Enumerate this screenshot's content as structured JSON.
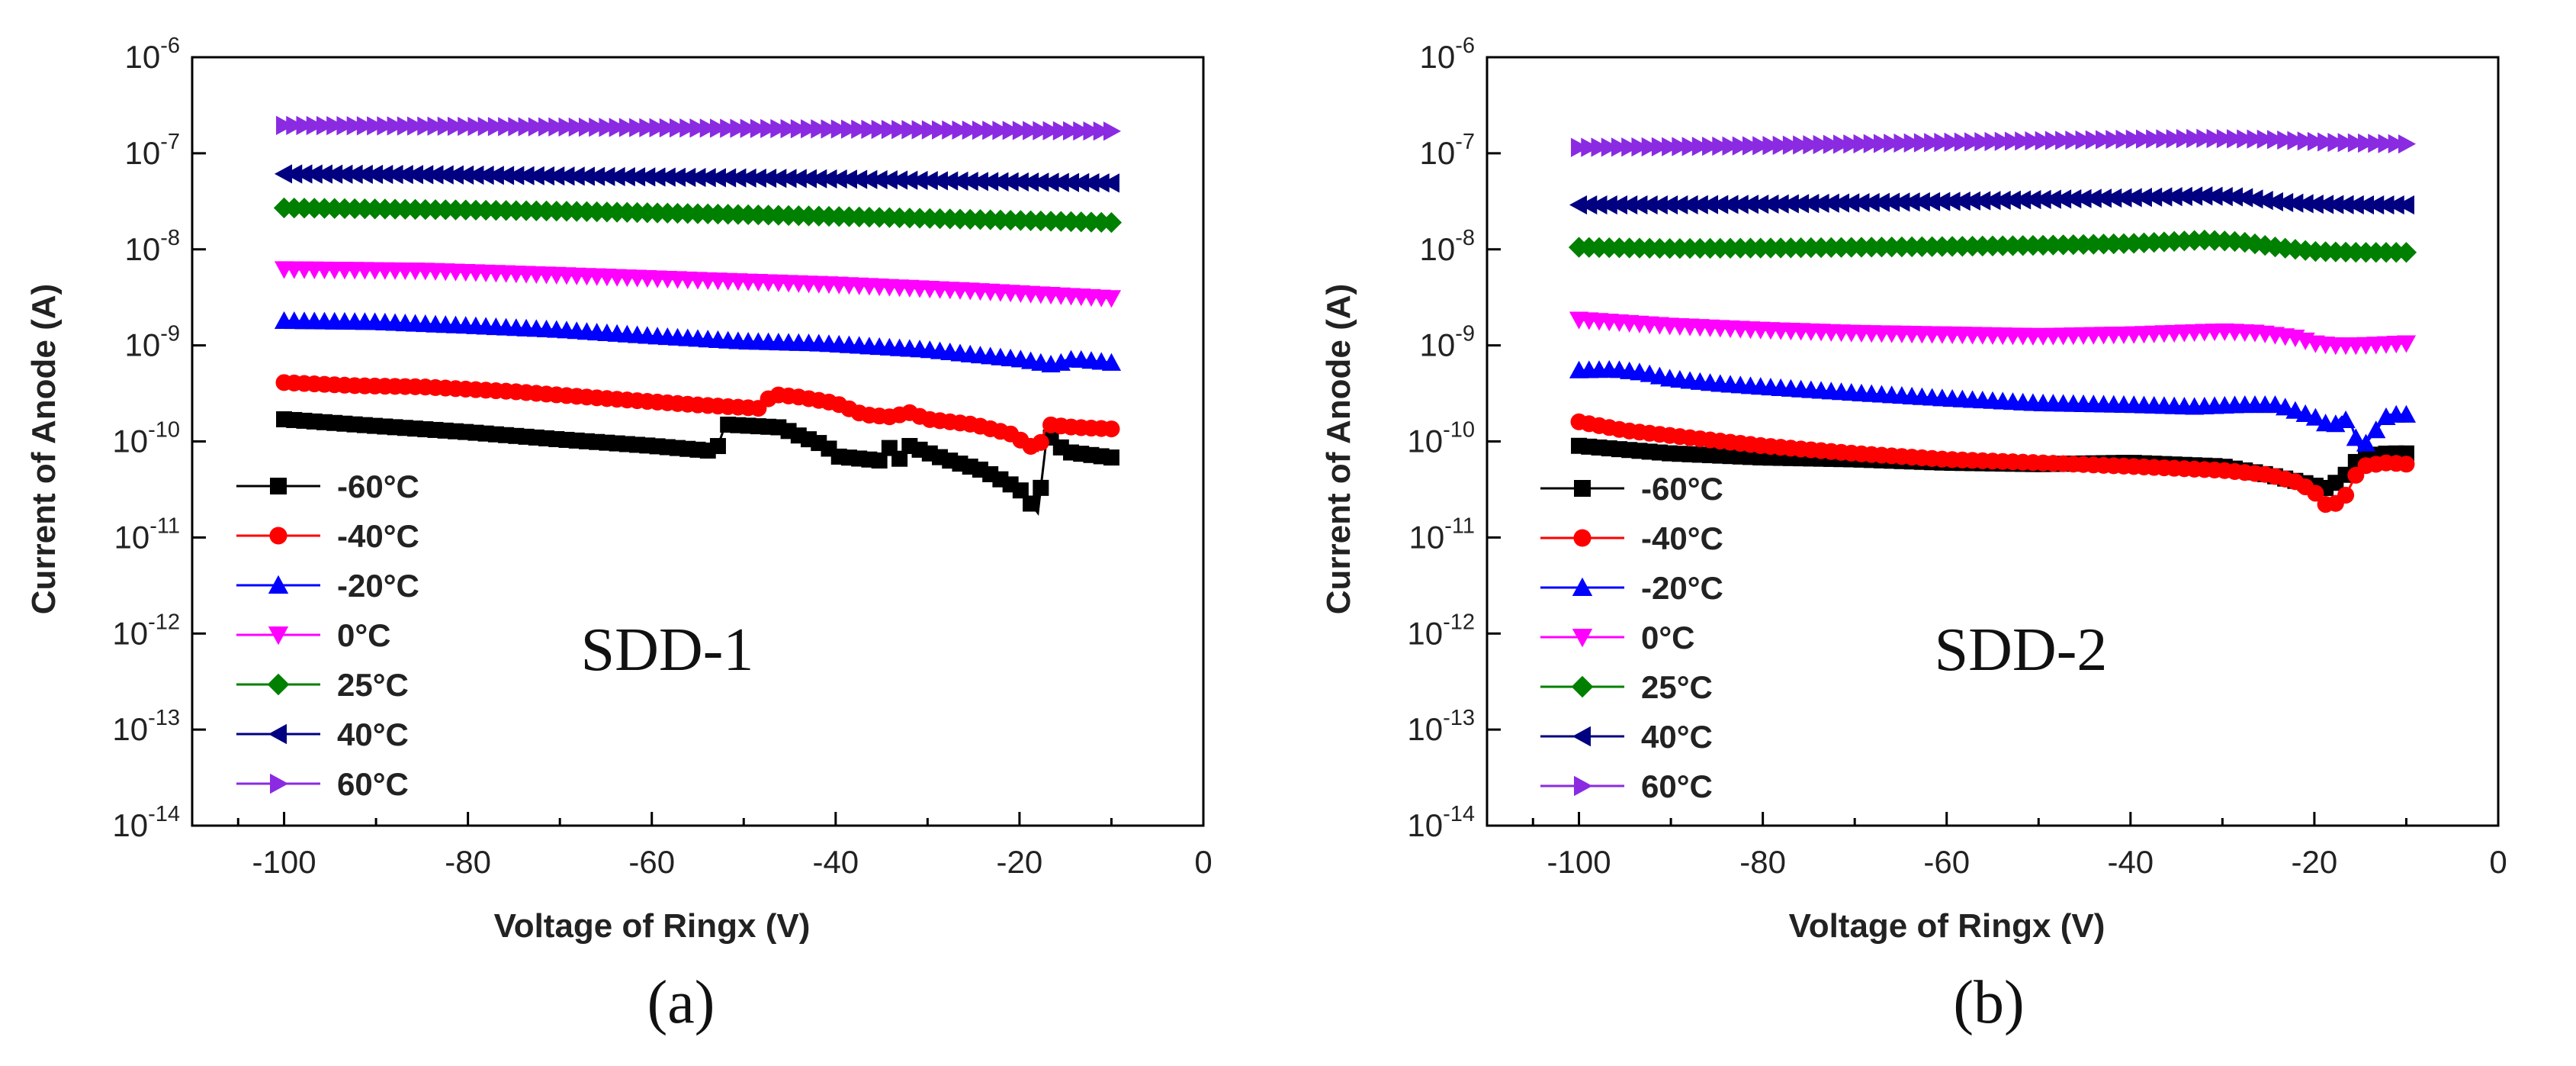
{
  "chart_data": [
    {
      "type": "line",
      "panel": "(a)",
      "annotation": "SDD-1",
      "xlabel": "Voltage of Ringx (V)",
      "ylabel": "Current of Anode (A)",
      "xlim": [
        -110,
        0
      ],
      "xticks": [
        -100,
        -80,
        -60,
        -40,
        -20,
        0
      ],
      "xtick_labels": [
        "-100",
        "-80",
        "-60",
        "-40",
        "-20",
        "0"
      ],
      "yscale": "log",
      "ylim": [
        1e-14,
        1e-06
      ],
      "yticks": [
        {
          "base": "10",
          "exp": "-14"
        },
        {
          "base": "10",
          "exp": "-13"
        },
        {
          "base": "10",
          "exp": "-12"
        },
        {
          "base": "10",
          "exp": "-11"
        },
        {
          "base": "10",
          "exp": "-10"
        },
        {
          "base": "10",
          "exp": "-9"
        },
        {
          "base": "10",
          "exp": "-8"
        },
        {
          "base": "10",
          "exp": "-7"
        },
        {
          "base": "10",
          "exp": "-6"
        }
      ],
      "legend_position": "lower-left",
      "series": [
        {
          "name": "-60°C",
          "color": "#000000",
          "marker": "square",
          "x": [
            -100,
            -90,
            -80,
            -70,
            -60,
            -53,
            -52,
            -46,
            -44,
            -41,
            -40,
            -35,
            -34,
            -33,
            -32,
            -28,
            -24,
            -20,
            -18,
            -17,
            -15,
            -10
          ],
          "y": [
            1.7e-10,
            1.45e-10,
            1.25e-10,
            1.05e-10,
            9e-11,
            7.9e-11,
            1.5e-10,
            1.4e-10,
            1.15e-10,
            9e-11,
            7e-11,
            6.3e-11,
            9e-11,
            6.5e-11,
            9e-11,
            6.5e-11,
            5e-11,
            3.2e-11,
            1.8e-11,
            1.2e-10,
            7.8e-11,
            6.8e-11
          ]
        },
        {
          "name": "-40°C",
          "color": "#ff0000",
          "marker": "circle",
          "x": [
            -100,
            -92,
            -85,
            -75,
            -65,
            -55,
            -48,
            -47,
            -44,
            -40,
            -37,
            -34,
            -32,
            -30,
            -25,
            -21,
            -18,
            -17,
            -14,
            -10
          ],
          "y": [
            4.1e-10,
            3.8e-10,
            3.7e-10,
            3.3e-10,
            2.8e-10,
            2.4e-10,
            2.2e-10,
            3.1e-10,
            2.9e-10,
            2.5e-10,
            1.9e-10,
            1.8e-10,
            2e-10,
            1.7e-10,
            1.5e-10,
            1.2e-10,
            8e-11,
            1.5e-10,
            1.4e-10,
            1.35e-10
          ]
        },
        {
          "name": "-20°C",
          "color": "#0000ff",
          "marker": "triangle-up",
          "x": [
            -100,
            -90,
            -80,
            -70,
            -60,
            -50,
            -42,
            -38,
            -30,
            -25,
            -20,
            -16,
            -15,
            -14,
            -10
          ],
          "y": [
            1.8e-09,
            1.75e-09,
            1.6e-09,
            1.45e-09,
            1.25e-09,
            1.1e-09,
            1.05e-09,
            1e-09,
            9e-10,
            8e-10,
            7.2e-10,
            6.2e-10,
            7e-10,
            7.2e-10,
            6.6e-10
          ]
        },
        {
          "name": "0°C",
          "color": "#ff00ff",
          "marker": "triangle-down",
          "x": [
            -100,
            -85,
            -70,
            -55,
            -40,
            -25,
            -10
          ],
          "y": [
            6.2e-09,
            6e-09,
            5.4e-09,
            4.8e-09,
            4.3e-09,
            3.7e-09,
            3.1e-09
          ]
        },
        {
          "name": "25°C",
          "color": "#008000",
          "marker": "diamond",
          "x": [
            -100,
            -85,
            -70,
            -55,
            -40,
            -25,
            -10
          ],
          "y": [
            2.7e-08,
            2.6e-08,
            2.5e-08,
            2.35e-08,
            2.2e-08,
            2.05e-08,
            1.9e-08
          ]
        },
        {
          "name": "40°C",
          "color": "#000080",
          "marker": "triangle-left",
          "x": [
            -100,
            -85,
            -70,
            -55,
            -40,
            -25,
            -10
          ],
          "y": [
            6.1e-08,
            6e-08,
            5.8e-08,
            5.6e-08,
            5.4e-08,
            5.1e-08,
            4.9e-08
          ]
        },
        {
          "name": "60°C",
          "color": "#8a2be2",
          "marker": "triangle-right",
          "x": [
            -100,
            -85,
            -70,
            -55,
            -40,
            -25,
            -10
          ],
          "y": [
            1.95e-07,
            1.92e-07,
            1.88e-07,
            1.83e-07,
            1.79e-07,
            1.74e-07,
            1.7e-07
          ]
        }
      ]
    },
    {
      "type": "line",
      "panel": "(b)",
      "annotation": "SDD-2",
      "xlabel": "Voltage of Ringx (V)",
      "ylabel": "Current of Anode (A)",
      "xlim": [
        -110,
        0
      ],
      "xticks": [
        -100,
        -80,
        -60,
        -40,
        -20,
        0
      ],
      "xtick_labels": [
        "-100",
        "-80",
        "-60",
        "-40",
        "-20",
        "0"
      ],
      "yscale": "log",
      "ylim": [
        1e-14,
        1e-06
      ],
      "yticks": [
        {
          "base": "10",
          "exp": "-14"
        },
        {
          "base": "10",
          "exp": "-13"
        },
        {
          "base": "10",
          "exp": "-12"
        },
        {
          "base": "10",
          "exp": "-11"
        },
        {
          "base": "10",
          "exp": "-10"
        },
        {
          "base": "10",
          "exp": "-9"
        },
        {
          "base": "10",
          "exp": "-8"
        },
        {
          "base": "10",
          "exp": "-7"
        },
        {
          "base": "10",
          "exp": "-6"
        }
      ],
      "legend_position": "lower-left",
      "series": [
        {
          "name": "-60°C",
          "color": "#000000",
          "marker": "square",
          "x": [
            -100,
            -90,
            -80,
            -70,
            -60,
            -50,
            -40,
            -30,
            -25,
            -20,
            -19,
            -17,
            -15,
            -12,
            -10
          ],
          "y": [
            9e-11,
            7.5e-11,
            6.8e-11,
            6.5e-11,
            6e-11,
            5.8e-11,
            6e-11,
            5.5e-11,
            4.5e-11,
            3.5e-11,
            3.2e-11,
            4e-11,
            7e-11,
            7.5e-11,
            7.5e-11
          ]
        },
        {
          "name": "-40°C",
          "color": "#ff0000",
          "marker": "circle",
          "x": [
            -100,
            -95,
            -90,
            -80,
            -70,
            -60,
            -50,
            -40,
            -30,
            -25,
            -22,
            -20,
            -19,
            -17,
            -15,
            -12,
            -10
          ],
          "y": [
            1.6e-10,
            1.3e-10,
            1.15e-10,
            9e-11,
            7.5e-11,
            6.5e-11,
            6e-11,
            5.5e-11,
            5e-11,
            4.5e-11,
            3.8e-11,
            3e-11,
            2.2e-11,
            2.3e-11,
            5.5e-11,
            6e-11,
            5.8e-11
          ]
        },
        {
          "name": "-20°C",
          "color": "#0000ff",
          "marker": "triangle-up",
          "x": [
            -100,
            -96,
            -93,
            -90,
            -85,
            -80,
            -70,
            -60,
            -50,
            -40,
            -33,
            -28,
            -24,
            -20,
            -18,
            -17,
            -16,
            -15,
            -12,
            -10
          ],
          "y": [
            5.5e-10,
            5.6e-10,
            5.2e-10,
            4.5e-10,
            4e-10,
            3.7e-10,
            3.2e-10,
            2.8e-10,
            2.5e-10,
            2.4e-10,
            2.3e-10,
            2.4e-10,
            2.4e-10,
            1.8e-10,
            1.4e-10,
            1.8e-10,
            1.5e-10,
            8e-11,
            1.9e-10,
            1.9e-10
          ]
        },
        {
          "name": "0°C",
          "color": "#ff00ff",
          "marker": "triangle-down",
          "x": [
            -100,
            -90,
            -80,
            -70,
            -60,
            -50,
            -40,
            -30,
            -26,
            -22,
            -20,
            -18,
            -15,
            -10
          ],
          "y": [
            1.85e-09,
            1.6e-09,
            1.45e-09,
            1.35e-09,
            1.3e-09,
            1.25e-09,
            1.3e-09,
            1.4e-09,
            1.35e-09,
            1.2e-09,
            1.05e-09,
            1e-09,
            1e-09,
            1.05e-09
          ]
        },
        {
          "name": "25°C",
          "color": "#008000",
          "marker": "diamond",
          "x": [
            -100,
            -90,
            -80,
            -70,
            -60,
            -50,
            -40,
            -32,
            -28,
            -24,
            -20,
            -15,
            -10
          ],
          "y": [
            1.05e-08,
            1.02e-08,
            1.03e-08,
            1.05e-08,
            1.07e-08,
            1.1e-08,
            1.15e-08,
            1.25e-08,
            1.2e-08,
            1.05e-08,
            9.5e-09,
            9.3e-09,
            9.3e-09
          ]
        },
        {
          "name": "40°C",
          "color": "#000080",
          "marker": "triangle-left",
          "x": [
            -100,
            -90,
            -80,
            -70,
            -60,
            -50,
            -40,
            -32,
            -28,
            -24,
            -20,
            -15,
            -10
          ],
          "y": [
            2.9e-08,
            2.9e-08,
            2.95e-08,
            3.05e-08,
            3.15e-08,
            3.3e-08,
            3.45e-08,
            3.6e-08,
            3.5e-08,
            3.1e-08,
            2.95e-08,
            2.9e-08,
            2.9e-08
          ]
        },
        {
          "name": "60°C",
          "color": "#8a2be2",
          "marker": "triangle-right",
          "x": [
            -100,
            -90,
            -80,
            -70,
            -60,
            -50,
            -40,
            -32,
            -25,
            -18,
            -10
          ],
          "y": [
            1.15e-07,
            1.17e-07,
            1.2e-07,
            1.25e-07,
            1.3e-07,
            1.35e-07,
            1.4e-07,
            1.43e-07,
            1.4e-07,
            1.3e-07,
            1.25e-07
          ]
        }
      ]
    }
  ]
}
